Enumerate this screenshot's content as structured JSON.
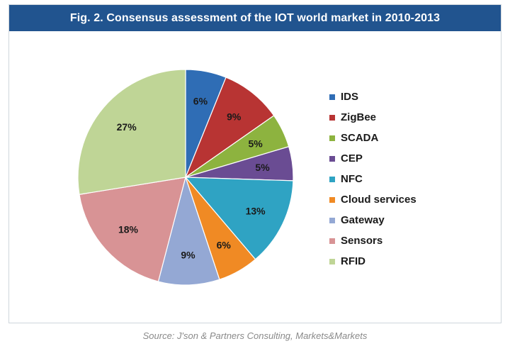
{
  "title": "Fig. 2. Consensus assessment of the IOT world market in 2010-2013",
  "source": "Source: J'son & Partners Consulting, Markets&Markets",
  "colors": {
    "title_bar": "#21548f",
    "title_text": "#ffffff",
    "source_text": "#8a8a8a"
  },
  "chart_data": {
    "type": "pie",
    "title": "Fig. 2. Consensus assessment of the IOT world market in 2010-2013",
    "start_angle": "12 o'clock",
    "direction": "clockwise",
    "legend_position": "right",
    "slices": [
      {
        "label": "IDS",
        "value": 6,
        "display": "6%",
        "color": "#2f6db5"
      },
      {
        "label": "ZigBee",
        "value": 9,
        "display": "9%",
        "color": "#b83433"
      },
      {
        "label": "SCADA",
        "value": 5,
        "display": "5%",
        "color": "#8db33f"
      },
      {
        "label": "CEP",
        "value": 5,
        "display": "5%",
        "color": "#6a4c93"
      },
      {
        "label": "NFC",
        "value": 13,
        "display": "13%",
        "color": "#2fa3c3"
      },
      {
        "label": "Cloud services",
        "value": 6,
        "display": "6%",
        "color": "#f08a24"
      },
      {
        "label": "Gateway",
        "value": 9,
        "display": "9%",
        "color": "#94a8d4"
      },
      {
        "label": "Sensors",
        "value": 18,
        "display": "18%",
        "color": "#d89395"
      },
      {
        "label": "RFID",
        "value": 27,
        "display": "27%",
        "color": "#bfd596"
      }
    ]
  }
}
